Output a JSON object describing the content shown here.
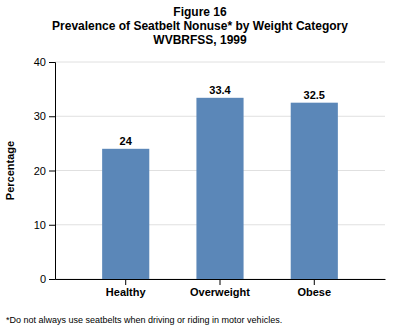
{
  "chart_data": {
    "type": "bar",
    "title": "Figure 16",
    "subtitle": [
      "Prevalence of Seatbelt Nonuse* by Weight Category",
      "WVBRFSS, 1999"
    ],
    "categories": [
      "Healthy",
      "Overweight",
      "Obese"
    ],
    "values": [
      24.0,
      33.4,
      32.5
    ],
    "color": "#5b87b8",
    "ylabel": "Percentage",
    "ylim": [
      0,
      40
    ],
    "yticks": [
      0,
      10,
      20,
      30,
      40
    ],
    "grid": true,
    "data_labels": true,
    "annotations": [
      "*Do not always use seatbelts when driving or riding in motor vehicles."
    ]
  }
}
